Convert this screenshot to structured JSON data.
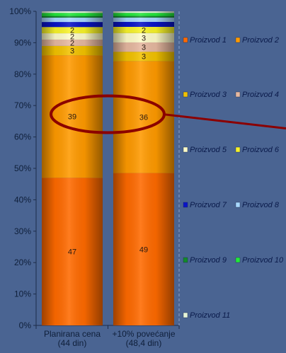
{
  "chart_data": {
    "type": "bar",
    "stacked": true,
    "percent": true,
    "categories": [
      "Planirana cena (44 din)",
      "+10% povećanje (48,4 din)"
    ],
    "category_lines": [
      [
        "Planirana cena",
        "(44 din)"
      ],
      [
        "+10% povećanje",
        "(48,4 din)"
      ]
    ],
    "ylim": [
      0,
      100
    ],
    "yticks": [
      "0%",
      "10%",
      "20%",
      "30%",
      "40%",
      "50%",
      "60%",
      "70%",
      "80%",
      "90%",
      "100%"
    ],
    "grid": false,
    "legend_position": "right",
    "series": [
      {
        "name": "Proizvod 1",
        "color": "#ff6a00",
        "values": [
          47,
          49
        ],
        "labels": [
          "47",
          "49"
        ]
      },
      {
        "name": "Proizvod 2",
        "color": "#ff9a00",
        "values": [
          39,
          36
        ],
        "labels": [
          "39",
          "36"
        ]
      },
      {
        "name": "Proizvod 3",
        "color": "#f2c200",
        "values": [
          3,
          3
        ],
        "labels": [
          "3",
          "3"
        ]
      },
      {
        "name": "Proizvod 4",
        "color": "#e6b8a0",
        "values": [
          2,
          3
        ],
        "labels": [
          "2",
          "3"
        ]
      },
      {
        "name": "Proizvod 5",
        "color": "#fdfbc8",
        "values": [
          2,
          3
        ],
        "labels": [
          "2",
          "3"
        ]
      },
      {
        "name": "Proizvod 6",
        "color": "#f7f22a",
        "values": [
          2,
          2
        ],
        "labels": [
          "2",
          "2"
        ]
      },
      {
        "name": "Proizvod 7",
        "color": "#0a14c8",
        "values": [
          1.6,
          1.6
        ],
        "labels": [
          "",
          ""
        ]
      },
      {
        "name": "Proizvod 8",
        "color": "#a8d8ff",
        "values": [
          1.4,
          1.4
        ],
        "labels": [
          "",
          ""
        ]
      },
      {
        "name": "Proizvod 9",
        "color": "#128a2a",
        "values": [
          0.5,
          0.5
        ],
        "labels": [
          "",
          ""
        ]
      },
      {
        "name": "Proizvod 10",
        "color": "#22e83a",
        "values": [
          1.0,
          1.0
        ],
        "labels": [
          "",
          ""
        ]
      },
      {
        "name": "Proizvod 11",
        "color": "#e6f5d8",
        "values": [
          0.5,
          0.5
        ],
        "labels": [
          "",
          ""
        ]
      }
    ],
    "annotation": {
      "type": "ellipse-with-arrow",
      "color": "#8b0000",
      "around_value": 67
    }
  }
}
